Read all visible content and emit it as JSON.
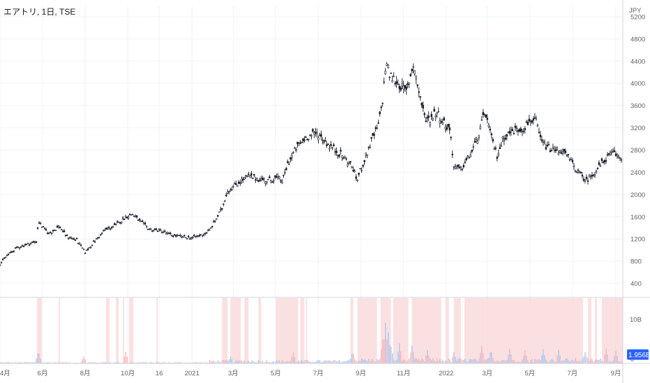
{
  "header": {
    "title": "エアトリ, 1日, TSE"
  },
  "chart_data": {
    "type": "candlestick",
    "title": "エアトリ, 1日, TSE",
    "currency": "JPY",
    "price_axis": {
      "ticks": [
        400,
        800,
        1200,
        1600,
        2000,
        2400,
        2800,
        3200,
        3600,
        4000,
        4400,
        4800,
        5200
      ],
      "range": [
        150,
        5400
      ]
    },
    "volume_axis": {
      "ticks": [
        "10B",
        "0"
      ],
      "current_label": "1.956B",
      "max": 14
    },
    "time_axis": {
      "labels": [
        "4月",
        "6月",
        "8月",
        "10月",
        "16",
        "2021",
        "3月",
        "5月",
        "7月",
        "9月",
        "11月",
        "2022",
        "3月",
        "5月",
        "7月",
        "9月"
      ],
      "label_days": [
        0,
        61,
        122,
        183,
        228,
        275,
        334,
        395,
        456,
        517,
        578,
        639,
        698,
        759,
        820,
        882
      ]
    },
    "price_path": [
      [
        0,
        750
      ],
      [
        10,
        900
      ],
      [
        25,
        1050
      ],
      [
        45,
        1130
      ],
      [
        52,
        1150
      ],
      [
        55,
        1520
      ],
      [
        62,
        1400
      ],
      [
        70,
        1300
      ],
      [
        85,
        1430
      ],
      [
        95,
        1250
      ],
      [
        110,
        1180
      ],
      [
        122,
        960
      ],
      [
        135,
        1150
      ],
      [
        150,
        1360
      ],
      [
        165,
        1440
      ],
      [
        180,
        1600
      ],
      [
        190,
        1650
      ],
      [
        200,
        1520
      ],
      [
        215,
        1370
      ],
      [
        230,
        1350
      ],
      [
        245,
        1270
      ],
      [
        260,
        1240
      ],
      [
        275,
        1220
      ],
      [
        290,
        1280
      ],
      [
        300,
        1350
      ],
      [
        318,
        1750
      ],
      [
        325,
        2050
      ],
      [
        340,
        2200
      ],
      [
        355,
        2330
      ],
      [
        370,
        2280
      ],
      [
        385,
        2250
      ],
      [
        395,
        2300
      ],
      [
        405,
        2250
      ],
      [
        412,
        2550
      ],
      [
        425,
        2850
      ],
      [
        440,
        3050
      ],
      [
        455,
        3100
      ],
      [
        470,
        2900
      ],
      [
        490,
        2700
      ],
      [
        505,
        2500
      ],
      [
        511,
        2250
      ],
      [
        520,
        2550
      ],
      [
        530,
        2900
      ],
      [
        542,
        3250
      ],
      [
        548,
        3700
      ],
      [
        553,
        4400
      ],
      [
        558,
        4150
      ],
      [
        570,
        4000
      ],
      [
        582,
        3850
      ],
      [
        592,
        4350
      ],
      [
        600,
        3850
      ],
      [
        608,
        3400
      ],
      [
        615,
        3350
      ],
      [
        625,
        3500
      ],
      [
        635,
        3300
      ],
      [
        645,
        3150
      ],
      [
        650,
        2500
      ],
      [
        660,
        2450
      ],
      [
        675,
        2750
      ],
      [
        685,
        3050
      ],
      [
        695,
        3500
      ],
      [
        703,
        3050
      ],
      [
        712,
        2700
      ],
      [
        722,
        3050
      ],
      [
        735,
        3150
      ],
      [
        750,
        3200
      ],
      [
        760,
        3350
      ],
      [
        768,
        3300
      ],
      [
        775,
        2950
      ],
      [
        790,
        2800
      ],
      [
        803,
        2800
      ],
      [
        815,
        2650
      ],
      [
        828,
        2400
      ],
      [
        840,
        2250
      ],
      [
        855,
        2450
      ],
      [
        868,
        2650
      ],
      [
        878,
        2750
      ],
      [
        890,
        2650
      ]
    ],
    "volume_spikes": [
      [
        55,
        2.8
      ],
      [
        120,
        1.6
      ],
      [
        180,
        2.6
      ],
      [
        330,
        1.6
      ],
      [
        420,
        2.5
      ],
      [
        505,
        2.8
      ],
      [
        548,
        5.4
      ],
      [
        552,
        9.2
      ],
      [
        556,
        7.0
      ],
      [
        560,
        3.8
      ],
      [
        572,
        4.5
      ],
      [
        590,
        4.1
      ],
      [
        612,
        3.0
      ],
      [
        650,
        2.5
      ],
      [
        690,
        4.0
      ],
      [
        703,
        3.2
      ],
      [
        730,
        3.4
      ],
      [
        752,
        3.0
      ],
      [
        778,
        3.2
      ],
      [
        800,
        3.1
      ],
      [
        838,
        2.6
      ],
      [
        868,
        3.4
      ],
      [
        882,
        2.8
      ]
    ],
    "highlight_ranges": [
      [
        53,
        60
      ],
      [
        84,
        86
      ],
      [
        152,
        157
      ],
      [
        166,
        170
      ],
      [
        176,
        178
      ],
      [
        185,
        191
      ],
      [
        224,
        226
      ],
      [
        318,
        326
      ],
      [
        330,
        345
      ],
      [
        350,
        356
      ],
      [
        370,
        374
      ],
      [
        395,
        427
      ],
      [
        430,
        436
      ],
      [
        438,
        440
      ],
      [
        502,
        506
      ],
      [
        512,
        540
      ],
      [
        545,
        560
      ],
      [
        563,
        585
      ],
      [
        590,
        632
      ],
      [
        638,
        643
      ],
      [
        650,
        660
      ],
      [
        665,
        835
      ],
      [
        842,
        847
      ],
      [
        852,
        855
      ],
      [
        862,
        892
      ]
    ],
    "colors": {
      "candle": "#131722",
      "volume_up": "#f7b0b6",
      "volume_down": "#a7c6ee",
      "highlight": "#f9d5d7",
      "badge": "#2962ff"
    },
    "grid": true
  }
}
